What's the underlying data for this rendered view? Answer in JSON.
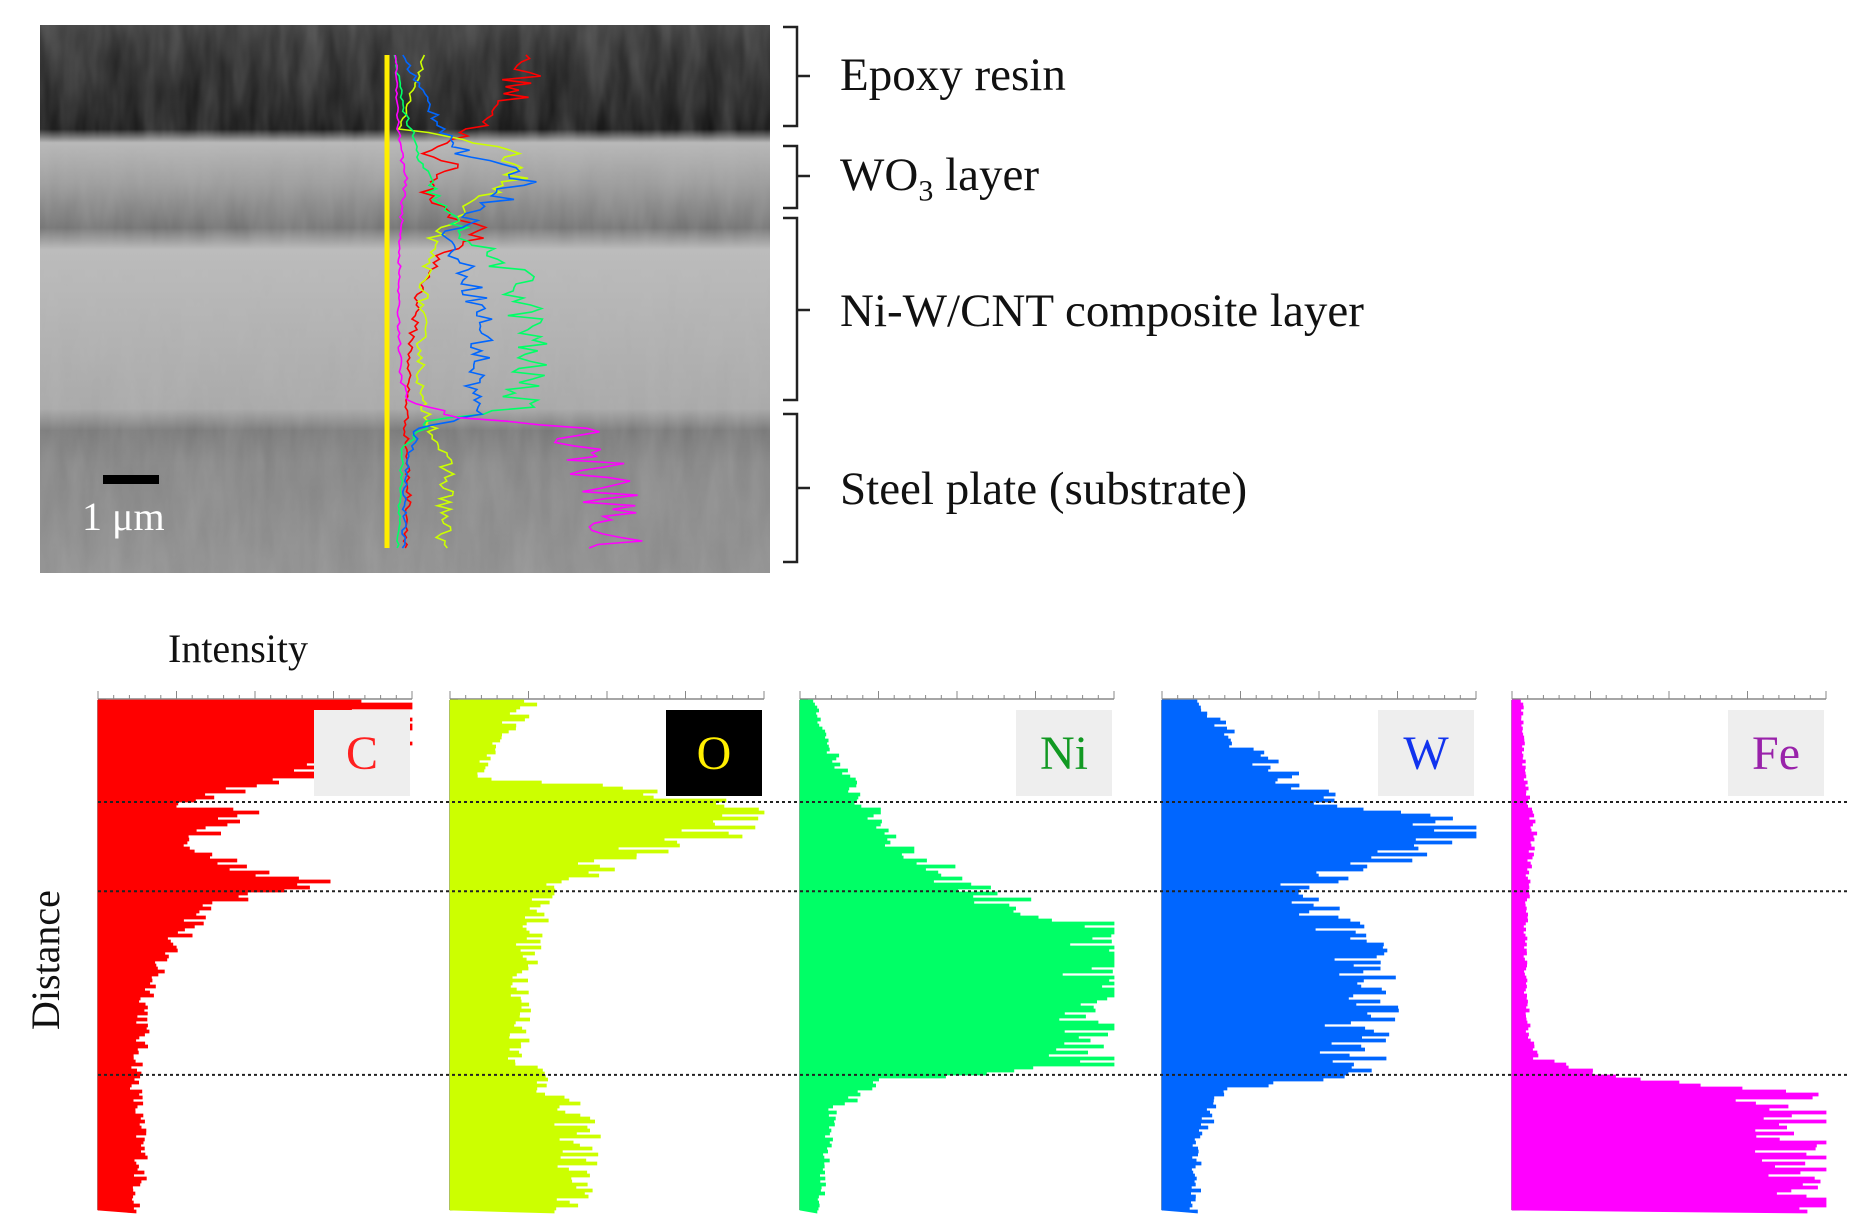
{
  "figure": {
    "layers": [
      {
        "label": "Epoxy resin"
      },
      {
        "label": "WO",
        "sub": "3",
        "suffix": " layer"
      },
      {
        "label": "Ni-W/CNT composite layer"
      },
      {
        "label": "Steel plate (substrate)"
      }
    ],
    "scale_bar": "1 μm",
    "axis_intensity": "Intensity",
    "axis_distance": "Distance"
  },
  "chart_data": {
    "type": "area",
    "x_label": "Intensity",
    "y_label": "Distance",
    "interfaces_fraction": [
      0.2,
      0.375,
      0.735
    ],
    "series": [
      {
        "name": "C",
        "color": "#ff0000",
        "tag_bg": "#eeeeee",
        "tag_fg": "#ff2020",
        "points": [
          [
            0,
            0.98
          ],
          [
            0.05,
            0.95
          ],
          [
            0.1,
            0.85
          ],
          [
            0.15,
            0.62
          ],
          [
            0.2,
            0.22
          ],
          [
            0.22,
            0.48
          ],
          [
            0.28,
            0.25
          ],
          [
            0.33,
            0.5
          ],
          [
            0.36,
            0.68
          ],
          [
            0.4,
            0.38
          ],
          [
            0.48,
            0.22
          ],
          [
            0.6,
            0.15
          ],
          [
            0.75,
            0.12
          ],
          [
            0.9,
            0.14
          ],
          [
            1,
            0.12
          ]
        ]
      },
      {
        "name": "O",
        "color": "#ccff00",
        "tag_bg": "#000000",
        "tag_fg": "#ffee00",
        "points": [
          [
            0,
            0.25
          ],
          [
            0.08,
            0.15
          ],
          [
            0.15,
            0.08
          ],
          [
            0.17,
            0.55
          ],
          [
            0.22,
            0.99
          ],
          [
            0.26,
            0.85
          ],
          [
            0.3,
            0.55
          ],
          [
            0.38,
            0.3
          ],
          [
            0.5,
            0.24
          ],
          [
            0.7,
            0.22
          ],
          [
            0.74,
            0.3
          ],
          [
            0.85,
            0.42
          ],
          [
            1,
            0.38
          ]
        ]
      },
      {
        "name": "Ni",
        "color": "#00ff66",
        "tag_bg": "#eeeeee",
        "tag_fg": "#119922",
        "points": [
          [
            0,
            0.04
          ],
          [
            0.1,
            0.1
          ],
          [
            0.2,
            0.2
          ],
          [
            0.3,
            0.35
          ],
          [
            0.38,
            0.6
          ],
          [
            0.45,
            0.92
          ],
          [
            0.55,
            1.0
          ],
          [
            0.65,
            0.99
          ],
          [
            0.72,
            0.9
          ],
          [
            0.74,
            0.3
          ],
          [
            0.8,
            0.1
          ],
          [
            1,
            0.06
          ]
        ]
      },
      {
        "name": "W",
        "color": "#0066ff",
        "tag_bg": "#eeeeee",
        "tag_fg": "#1133ee",
        "points": [
          [
            0,
            0.1
          ],
          [
            0.1,
            0.28
          ],
          [
            0.2,
            0.52
          ],
          [
            0.25,
            0.99
          ],
          [
            0.3,
            0.75
          ],
          [
            0.37,
            0.4
          ],
          [
            0.45,
            0.58
          ],
          [
            0.55,
            0.68
          ],
          [
            0.65,
            0.62
          ],
          [
            0.73,
            0.6
          ],
          [
            0.76,
            0.2
          ],
          [
            0.85,
            0.12
          ],
          [
            1,
            0.1
          ]
        ]
      },
      {
        "name": "Fe",
        "color": "#ff00ff",
        "tag_bg": "#eeeeee",
        "tag_fg": "#9922aa",
        "points": [
          [
            0,
            0.03
          ],
          [
            0.15,
            0.04
          ],
          [
            0.25,
            0.07
          ],
          [
            0.35,
            0.05
          ],
          [
            0.5,
            0.04
          ],
          [
            0.65,
            0.05
          ],
          [
            0.7,
            0.08
          ],
          [
            0.735,
            0.3
          ],
          [
            0.76,
            0.82
          ],
          [
            0.85,
            0.92
          ],
          [
            0.95,
            0.98
          ],
          [
            1,
            0.96
          ]
        ]
      }
    ]
  }
}
